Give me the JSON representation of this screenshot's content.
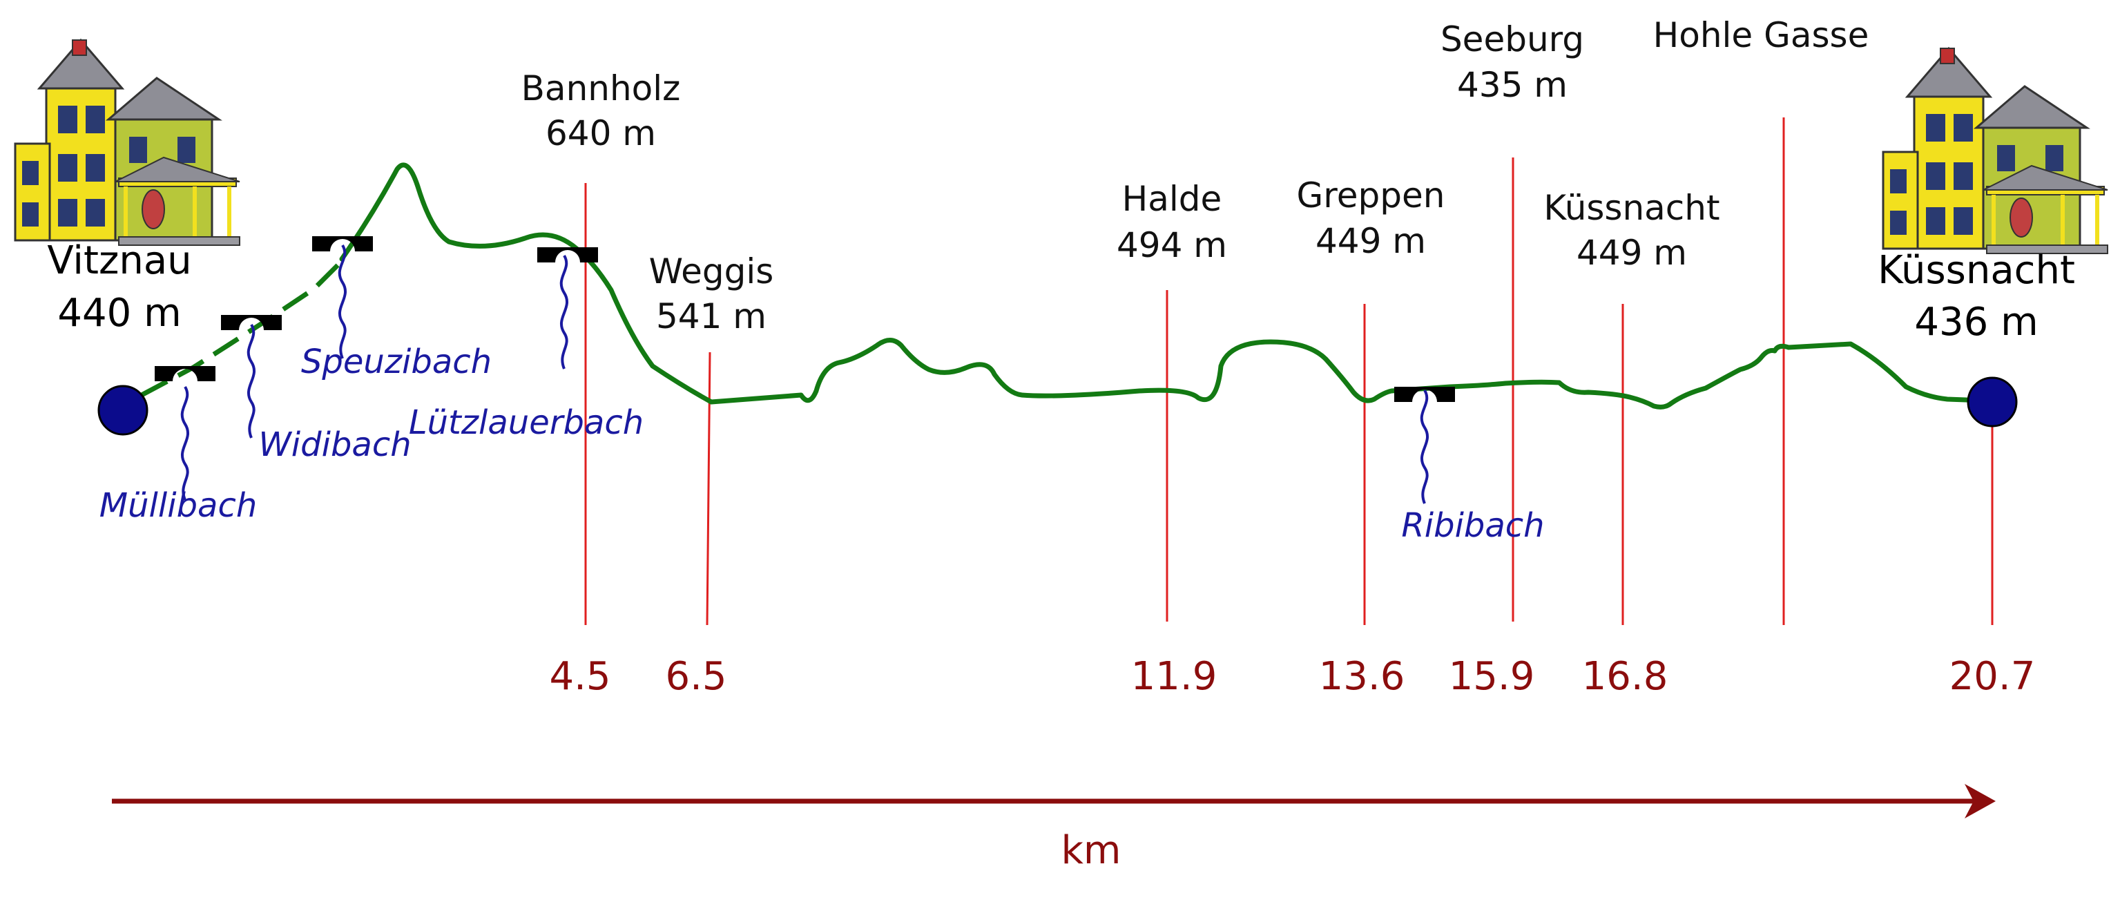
{
  "colors": {
    "profile": "#137a13",
    "marker_line": "#e02020",
    "km_text": "#8b0d0d",
    "stream": "#1a1aa0",
    "endpoint_fill": "#0b0b8c",
    "bridge": "#000000",
    "house_body": "#f2e01e",
    "house_trim": "#b7c73a",
    "roof": "#8e8e96"
  },
  "icons": [
    "house-icon",
    "bridge-icon",
    "stream-icon",
    "endpoint-dot-icon",
    "arrow-icon"
  ],
  "start": {
    "name": "Vitznau",
    "elevation": "440 m"
  },
  "end": {
    "name": "Küssnacht",
    "elevation": "436 m"
  },
  "places": [
    {
      "name": "Bannholz",
      "elevation": "640 m"
    },
    {
      "name": "Weggis",
      "elevation": "541 m"
    },
    {
      "name": "Halde",
      "elevation": "494 m"
    },
    {
      "name": "Greppen",
      "elevation": "449 m"
    },
    {
      "name": "Seeburg",
      "elevation": "435 m"
    },
    {
      "name": "Küssnacht",
      "elevation": "449 m"
    },
    {
      "name": "Hohle Gasse",
      "elevation": ""
    }
  ],
  "km_marks": [
    "4.5",
    "6.5",
    "11.9",
    "13.6",
    "15.9",
    "16.8",
    "20.7"
  ],
  "streams": [
    "Müllibach",
    "Widibach",
    "Speuzibach",
    "Lützlauerbach",
    "Ribibach"
  ],
  "axis_label": "km"
}
